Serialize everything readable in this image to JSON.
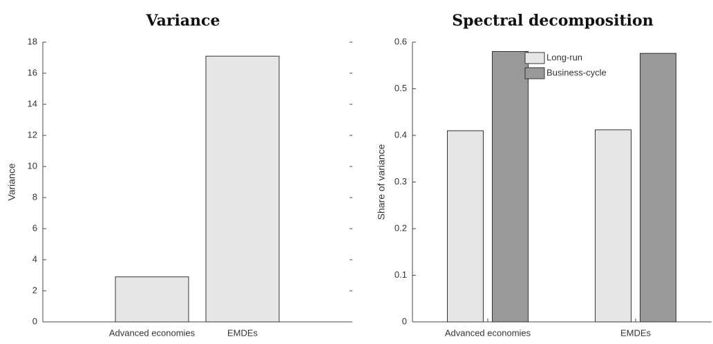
{
  "chart_data": [
    {
      "type": "bar",
      "title": "Variance",
      "y_label": "Variance",
      "categories": [
        "Advanced economies",
        "EMDEs"
      ],
      "series": [
        {
          "name": null,
          "color": "#e6e6e6",
          "values": [
            2.9,
            17.1
          ]
        }
      ],
      "ylim": [
        0,
        18
      ],
      "yticks": [
        0,
        2,
        4,
        6,
        8,
        10,
        12,
        14,
        16,
        18
      ]
    },
    {
      "type": "bar",
      "title": "Spectral decomposition",
      "y_label": "Share of variance",
      "categories": [
        "Advanced economies",
        "EMDEs"
      ],
      "series": [
        {
          "name": "Long-run",
          "color": "#e6e6e6",
          "values": [
            0.41,
            0.412
          ]
        },
        {
          "name": "Business-cycle",
          "color": "#999999",
          "values": [
            0.58,
            0.576
          ]
        }
      ],
      "ylim": [
        0,
        0.6
      ],
      "yticks": [
        0,
        0.1,
        0.2,
        0.3,
        0.4,
        0.5,
        0.6
      ],
      "legend": "upper-center"
    }
  ]
}
